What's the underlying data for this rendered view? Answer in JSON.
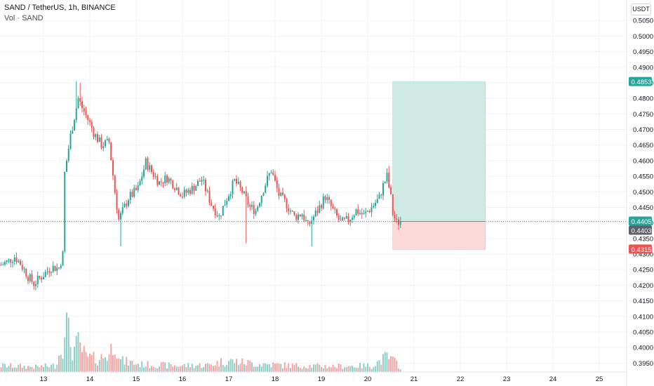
{
  "legend": {
    "title": "SAND / TetherUS, 1h, BINANCE",
    "volume": "Vol · SAND"
  },
  "currency": "USDT",
  "colors": {
    "up": "#26a69a",
    "down": "#ef5350",
    "vol_up": "#8fcfc6",
    "vol_down": "#f3a5a3",
    "target_zone": "#cfeae5",
    "stop_zone": "#fbd8d9",
    "last_price_badge": "#26a69a",
    "prev_close_badge": "#5d606b",
    "target_badge": "#26a69a",
    "stop_badge": "#ef5350"
  },
  "chart_data": {
    "type": "candlestick",
    "y_axis": {
      "min": 0.3935,
      "max": 0.5055,
      "ticks": [
        "0.5050",
        "0.5000",
        "0.4950",
        "0.4900",
        "0.4850",
        "0.4800",
        "0.4750",
        "0.4700",
        "0.4650",
        "0.4600",
        "0.4550",
        "0.4500",
        "0.4450",
        "0.4400",
        "0.4350",
        "0.4300",
        "0.4250",
        "0.4200",
        "0.4150",
        "0.4100",
        "0.4050",
        "0.4000",
        "0.3950"
      ]
    },
    "x_axis": {
      "ticks": [
        {
          "label": "13",
          "hour": 0
        },
        {
          "label": "14",
          "hour": 24
        },
        {
          "label": "15",
          "hour": 48
        },
        {
          "label": "16",
          "hour": 72
        },
        {
          "label": "17",
          "hour": 96
        },
        {
          "label": "18",
          "hour": 120
        },
        {
          "label": "19",
          "hour": 144
        },
        {
          "label": "20",
          "hour": 168
        },
        {
          "label": "21",
          "hour": 192
        },
        {
          "label": "22",
          "hour": 216
        },
        {
          "label": "23",
          "hour": 240
        },
        {
          "label": "24",
          "hour": 264
        },
        {
          "label": "25",
          "hour": 288
        }
      ]
    },
    "anchors": [
      {
        "h": -22,
        "p": 0.4265
      },
      {
        "h": -18,
        "p": 0.4278
      },
      {
        "h": -15,
        "p": 0.4292
      },
      {
        "h": -12,
        "p": 0.427
      },
      {
        "h": -8,
        "p": 0.4228
      },
      {
        "h": -5,
        "p": 0.4205
      },
      {
        "h": -2,
        "p": 0.4222
      },
      {
        "h": 4,
        "p": 0.4258
      },
      {
        "h": 8,
        "p": 0.4255
      },
      {
        "h": 10,
        "p": 0.43
      },
      {
        "h": 11,
        "p": 0.456
      },
      {
        "h": 14,
        "p": 0.468
      },
      {
        "h": 16,
        "p": 0.474
      },
      {
        "h": 18,
        "p": 0.48
      },
      {
        "h": 20,
        "p": 0.477
      },
      {
        "h": 24,
        "p": 0.472
      },
      {
        "h": 26,
        "p": 0.469
      },
      {
        "h": 30,
        "p": 0.465
      },
      {
        "h": 34,
        "p": 0.466
      },
      {
        "h": 37,
        "p": 0.45
      },
      {
        "h": 39,
        "p": 0.441
      },
      {
        "h": 44,
        "p": 0.448
      },
      {
        "h": 49,
        "p": 0.451
      },
      {
        "h": 53,
        "p": 0.4595
      },
      {
        "h": 56,
        "p": 0.4565
      },
      {
        "h": 60,
        "p": 0.453
      },
      {
        "h": 64,
        "p": 0.4545
      },
      {
        "h": 68,
        "p": 0.452
      },
      {
        "h": 72,
        "p": 0.449
      },
      {
        "h": 77,
        "p": 0.451
      },
      {
        "h": 82,
        "p": 0.454
      },
      {
        "h": 87,
        "p": 0.446
      },
      {
        "h": 91,
        "p": 0.442
      },
      {
        "h": 95,
        "p": 0.448
      },
      {
        "h": 99,
        "p": 0.4535
      },
      {
        "h": 103,
        "p": 0.45
      },
      {
        "h": 107,
        "p": 0.445
      },
      {
        "h": 110,
        "p": 0.444
      },
      {
        "h": 114,
        "p": 0.451
      },
      {
        "h": 118,
        "p": 0.457
      },
      {
        "h": 122,
        "p": 0.449
      },
      {
        "h": 126,
        "p": 0.446
      },
      {
        "h": 130,
        "p": 0.442
      },
      {
        "h": 134,
        "p": 0.443
      },
      {
        "h": 137,
        "p": 0.439
      },
      {
        "h": 142,
        "p": 0.444
      },
      {
        "h": 146,
        "p": 0.4485
      },
      {
        "h": 150,
        "p": 0.444
      },
      {
        "h": 154,
        "p": 0.44
      },
      {
        "h": 158,
        "p": 0.441
      },
      {
        "h": 162,
        "p": 0.444
      },
      {
        "h": 166,
        "p": 0.4425
      },
      {
        "h": 170,
        "p": 0.445
      },
      {
        "h": 174,
        "p": 0.448
      },
      {
        "h": 176,
        "p": 0.452
      },
      {
        "h": 178,
        "p": 0.455
      },
      {
        "h": 180,
        "p": 0.448
      },
      {
        "h": 181,
        "p": 0.443
      },
      {
        "h": 183,
        "p": 0.44
      },
      {
        "h": 185,
        "p": 0.4405
      }
    ],
    "wick_spikes": [
      {
        "h": 17,
        "high": 0.4855
      },
      {
        "h": 19,
        "high": 0.485
      },
      {
        "h": 40,
        "low": 0.4325
      },
      {
        "h": 139,
        "low": 0.4325
      },
      {
        "h": 105,
        "low": 0.4335
      },
      {
        "h": 179,
        "high": 0.4583
      }
    ],
    "volume_profile": [
      {
        "h": -22,
        "v": 10
      },
      {
        "h": -12,
        "v": 9
      },
      {
        "h": -4,
        "v": 8
      },
      {
        "h": 6,
        "v": 10
      },
      {
        "h": 10,
        "v": 42
      },
      {
        "h": 11,
        "v": 90
      },
      {
        "h": 13,
        "v": 60
      },
      {
        "h": 15,
        "v": 32
      },
      {
        "h": 18,
        "v": 45
      },
      {
        "h": 22,
        "v": 24
      },
      {
        "h": 28,
        "v": 20
      },
      {
        "h": 34,
        "v": 28
      },
      {
        "h": 37,
        "v": 52
      },
      {
        "h": 40,
        "v": 18
      },
      {
        "h": 50,
        "v": 12
      },
      {
        "h": 70,
        "v": 10
      },
      {
        "h": 85,
        "v": 11
      },
      {
        "h": 95,
        "v": 18
      },
      {
        "h": 110,
        "v": 13
      },
      {
        "h": 130,
        "v": 10
      },
      {
        "h": 150,
        "v": 9
      },
      {
        "h": 170,
        "v": 10
      },
      {
        "h": 178,
        "v": 24
      },
      {
        "h": 183,
        "v": 14
      },
      {
        "h": 185,
        "v": 7
      }
    ],
    "long_position": {
      "start_hour": 181,
      "end_hour": 229,
      "entry": 0.4405,
      "target": 0.4853,
      "stop": 0.4315
    },
    "price_labels": [
      {
        "text": "0.4853",
        "price": 0.4853,
        "kind": "target"
      },
      {
        "text": "0.4405",
        "price": 0.4405,
        "kind": "last"
      },
      {
        "text": "0.4403",
        "price": 0.4403,
        "kind": "prev"
      },
      {
        "text": "0.4315",
        "price": 0.4315,
        "kind": "stop"
      }
    ]
  }
}
